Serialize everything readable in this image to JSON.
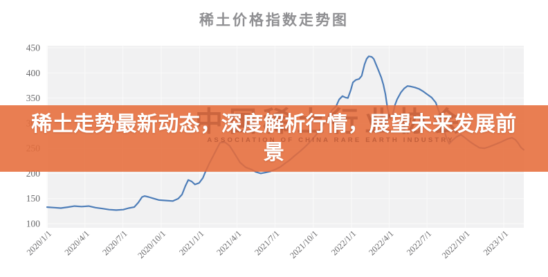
{
  "banner": {
    "text": "稀土走势最新动态，深度解析行情，展望未来发展前景",
    "bg_color": "rgba(230,108,58,0.88)",
    "text_color": "#ffffff"
  },
  "watermark": {
    "cn": "中国稀土行业协会",
    "en": "ASSOCIATION OF CHINA RARE EARTH INDUSTRY"
  },
  "colors": {
    "line": "#4d7db8",
    "plot_bg": "#f1f1f2",
    "grid": "#fafafa",
    "axis_text": "#68686a",
    "title_text": "#8f8f92"
  },
  "chart_data": {
    "type": "line",
    "title": "稀土价格指数走势图",
    "xlabel": "",
    "ylabel": "",
    "ylim": [
      100,
      450
    ],
    "y_ticks": [
      100,
      150,
      200,
      250,
      300,
      350,
      400,
      450
    ],
    "x_ticks": [
      "2020/1/1",
      "2020/4/1",
      "2020/7/1",
      "2020/10/1",
      "2021/1/1",
      "2021/4/1",
      "2021/7/1",
      "2021/10/1",
      "2022/1/1",
      "2022/4/1",
      "2022/7/1",
      "2022/10/1",
      "2023/1/1"
    ],
    "grid": true,
    "legend": "none",
    "series": [
      {
        "name": "稀土价格指数",
        "points": [
          [
            "2020/1/1",
            133
          ],
          [
            "2020/1/18",
            132
          ],
          [
            "2020/2/3",
            131
          ],
          [
            "2020/2/20",
            133
          ],
          [
            "2020/3/7",
            135
          ],
          [
            "2020/3/24",
            134
          ],
          [
            "2020/4/10",
            135
          ],
          [
            "2020/4/26",
            132
          ],
          [
            "2020/5/13",
            130
          ],
          [
            "2020/5/29",
            128
          ],
          [
            "2020/6/15",
            127
          ],
          [
            "2020/7/2",
            128
          ],
          [
            "2020/7/15",
            131
          ],
          [
            "2020/7/28",
            133
          ],
          [
            "2020/8/7",
            142
          ],
          [
            "2020/8/16",
            153
          ],
          [
            "2020/8/22",
            155
          ],
          [
            "2020/9/1",
            153
          ],
          [
            "2020/9/13",
            150
          ],
          [
            "2020/9/26",
            147
          ],
          [
            "2020/10/13",
            146
          ],
          [
            "2020/10/29",
            145
          ],
          [
            "2020/11/11",
            150
          ],
          [
            "2020/11/20",
            158
          ],
          [
            "2020/11/28",
            175
          ],
          [
            "2020/12/5",
            187
          ],
          [
            "2020/12/13",
            184
          ],
          [
            "2020/12/21",
            178
          ],
          [
            "2020/12/31",
            181
          ],
          [
            "2021/1/9",
            191
          ],
          [
            "2021/1/15",
            203
          ],
          [
            "2021/1/25",
            221
          ],
          [
            "2021/2/6",
            240
          ],
          [
            "2021/2/19",
            261
          ],
          [
            "2021/3/3",
            262
          ],
          [
            "2021/3/14",
            255
          ],
          [
            "2021/3/28",
            237
          ],
          [
            "2021/4/8",
            222
          ],
          [
            "2021/4/22",
            212
          ],
          [
            "2021/5/5",
            208
          ],
          [
            "2021/5/16",
            203
          ],
          [
            "2021/5/28",
            200
          ],
          [
            "2021/6/9",
            202
          ],
          [
            "2021/6/20",
            204
          ],
          [
            "2021/7/2",
            208
          ],
          [
            "2021/7/14",
            213
          ],
          [
            "2021/7/25",
            220
          ],
          [
            "2021/8/6",
            227
          ],
          [
            "2021/8/17",
            235
          ],
          [
            "2021/8/29",
            243
          ],
          [
            "2021/9/10",
            252
          ],
          [
            "2021/9/21",
            261
          ],
          [
            "2021/10/3",
            272
          ],
          [
            "2021/10/15",
            284
          ],
          [
            "2021/10/26",
            298
          ],
          [
            "2021/11/5",
            312
          ],
          [
            "2021/11/15",
            326
          ],
          [
            "2021/11/25",
            334
          ],
          [
            "2021/12/2",
            347
          ],
          [
            "2021/12/10",
            354
          ],
          [
            "2021/12/17",
            351
          ],
          [
            "2021/12/23",
            350
          ],
          [
            "2021/12/30",
            366
          ],
          [
            "2022/1/4",
            381
          ],
          [
            "2022/1/11",
            386
          ],
          [
            "2022/1/19",
            388
          ],
          [
            "2022/1/25",
            394
          ],
          [
            "2022/2/1",
            417
          ],
          [
            "2022/2/6",
            428
          ],
          [
            "2022/2/11",
            433
          ],
          [
            "2022/2/18",
            432
          ],
          [
            "2022/2/23",
            428
          ],
          [
            "2022/2/28",
            418
          ],
          [
            "2022/3/6",
            406
          ],
          [
            "2022/3/13",
            391
          ],
          [
            "2022/3/18",
            377
          ],
          [
            "2022/3/23",
            358
          ],
          [
            "2022/3/28",
            330
          ],
          [
            "2022/4/4",
            308
          ],
          [
            "2022/4/10",
            318
          ],
          [
            "2022/4/15",
            336
          ],
          [
            "2022/4/20",
            347
          ],
          [
            "2022/4/29",
            361
          ],
          [
            "2022/5/7",
            369
          ],
          [
            "2022/5/15",
            374
          ],
          [
            "2022/5/23",
            373
          ],
          [
            "2022/6/2",
            371
          ],
          [
            "2022/6/12",
            368
          ],
          [
            "2022/6/22",
            363
          ],
          [
            "2022/7/2",
            357
          ],
          [
            "2022/7/12",
            351
          ],
          [
            "2022/7/22",
            341
          ],
          [
            "2022/7/30",
            322
          ],
          [
            "2022/8/8",
            296
          ],
          [
            "2022/8/16",
            272
          ],
          [
            "2022/8/23",
            259
          ],
          [
            "2022/8/31",
            266
          ],
          [
            "2022/9/10",
            273
          ],
          [
            "2022/9/20",
            277
          ],
          [
            "2022/9/30",
            271
          ],
          [
            "2022/10/12",
            263
          ],
          [
            "2022/10/23",
            257
          ],
          [
            "2022/11/4",
            251
          ],
          [
            "2022/11/16",
            250
          ],
          [
            "2022/11/27",
            253
          ],
          [
            "2022/12/9",
            257
          ],
          [
            "2022/12/21",
            261
          ],
          [
            "2023/1/1",
            265
          ],
          [
            "2023/1/11",
            269
          ],
          [
            "2023/1/21",
            271
          ],
          [
            "2023/1/29",
            267
          ],
          [
            "2023/2/5",
            260
          ],
          [
            "2023/2/11",
            252
          ],
          [
            "2023/2/18",
            247
          ]
        ]
      }
    ]
  }
}
